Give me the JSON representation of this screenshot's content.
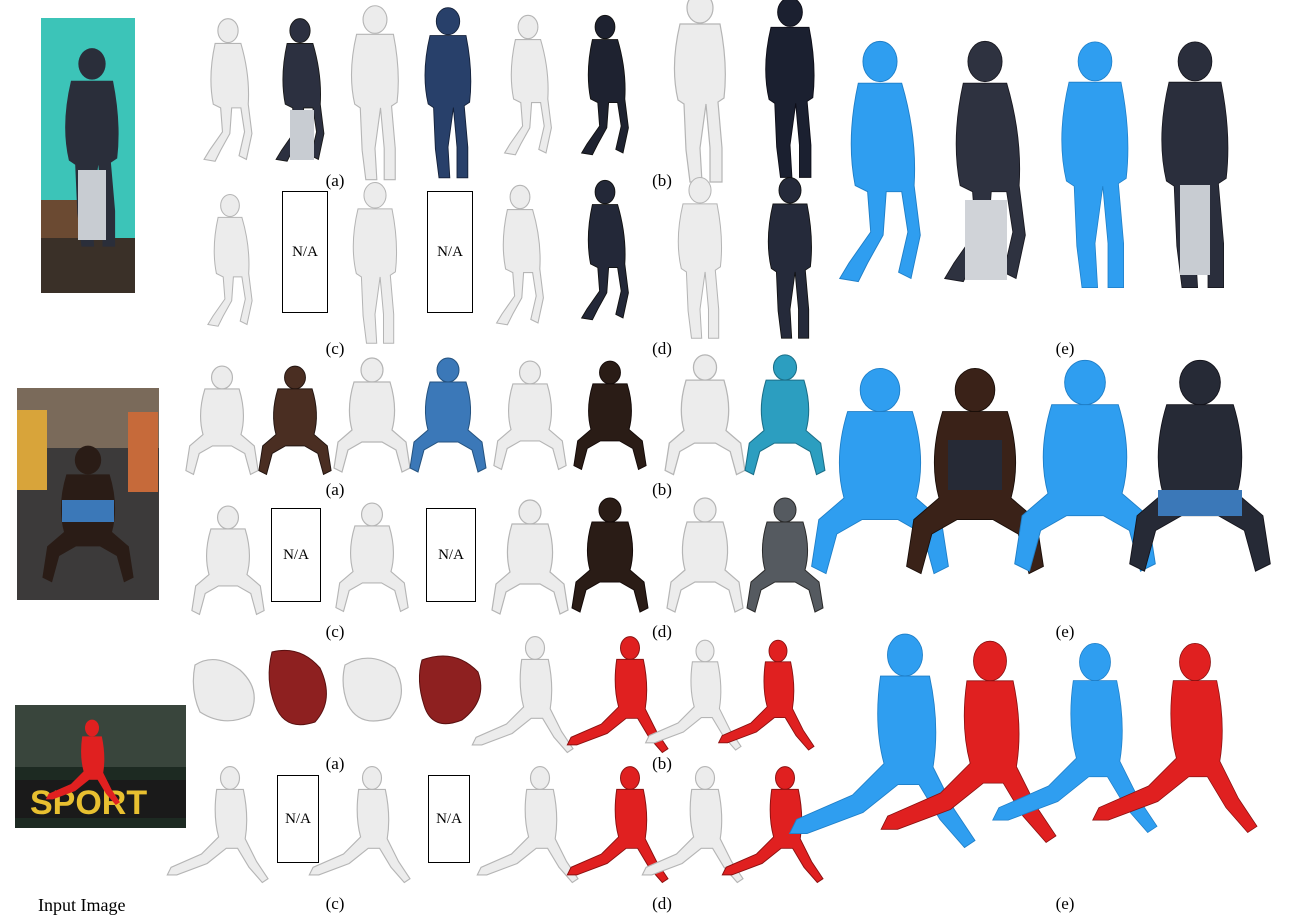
{
  "figure": {
    "input_label": "Input Image",
    "na_text": "N/A",
    "captions": {
      "a": "(a)",
      "b": "(b)",
      "c": "(c)",
      "d": "(d)",
      "e": "(e)"
    }
  },
  "colors": {
    "wall_teal": "#3cc4b8",
    "untextured_mesh": "#e6e6e6",
    "highlighted_mesh": "#2f9ef0",
    "jersey_red": "#e02020",
    "dark_shirt": "#262a36",
    "skin_dark": "#4a2e22",
    "jeans": "#c8ccd2",
    "shorts_blue": "#3b78b8"
  },
  "icons": [
    "person-silhouette-icon"
  ]
}
